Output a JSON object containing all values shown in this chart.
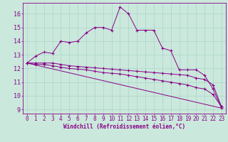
{
  "xlabel": "Windchill (Refroidissement éolien,°C)",
  "bg_color": "#cbe8dc",
  "line_color": "#880088",
  "grid_color": "#aad4c8",
  "xlim_min": -0.5,
  "xlim_max": 23.5,
  "ylim_min": 8.7,
  "ylim_max": 16.8,
  "xticks": [
    0,
    1,
    2,
    3,
    4,
    5,
    6,
    7,
    8,
    9,
    10,
    11,
    12,
    13,
    14,
    15,
    16,
    17,
    18,
    19,
    20,
    21,
    22,
    23
  ],
  "yticks": [
    9,
    10,
    11,
    12,
    13,
    14,
    15,
    16
  ],
  "series1_x": [
    0,
    1,
    2,
    3,
    4,
    5,
    6,
    7,
    8,
    9,
    10,
    11,
    12,
    13,
    14,
    15,
    16,
    17,
    18,
    19,
    20,
    21,
    22,
    23
  ],
  "series1_y": [
    12.4,
    12.9,
    13.2,
    13.1,
    14.0,
    13.9,
    14.0,
    14.6,
    15.0,
    15.0,
    14.8,
    16.5,
    16.0,
    14.8,
    14.8,
    14.8,
    13.5,
    13.3,
    11.9,
    11.9,
    11.9,
    11.5,
    10.5,
    9.1
  ],
  "series2_x": [
    0,
    1,
    2,
    3,
    4,
    5,
    6,
    7,
    8,
    9,
    10,
    11,
    12,
    13,
    14,
    15,
    16,
    17,
    18,
    19,
    20,
    21,
    22,
    23
  ],
  "series2_y": [
    12.4,
    12.4,
    12.4,
    12.4,
    12.3,
    12.2,
    12.15,
    12.1,
    12.05,
    12.0,
    11.95,
    11.9,
    11.85,
    11.8,
    11.75,
    11.7,
    11.65,
    11.6,
    11.55,
    11.5,
    11.3,
    11.2,
    10.8,
    9.2
  ],
  "series3_x": [
    0,
    23
  ],
  "series3_y": [
    12.4,
    9.1
  ],
  "series4_x": [
    0,
    1,
    2,
    3,
    4,
    5,
    6,
    7,
    8,
    9,
    10,
    11,
    12,
    13,
    14,
    15,
    16,
    17,
    18,
    19,
    20,
    21,
    22,
    23
  ],
  "series4_y": [
    12.4,
    12.3,
    12.3,
    12.2,
    12.1,
    12.0,
    11.95,
    11.9,
    11.8,
    11.7,
    11.65,
    11.6,
    11.5,
    11.4,
    11.3,
    11.2,
    11.1,
    11.0,
    10.9,
    10.8,
    10.6,
    10.5,
    10.1,
    9.2
  ],
  "tick_fontsize": 5.5,
  "xlabel_fontsize": 5.5
}
